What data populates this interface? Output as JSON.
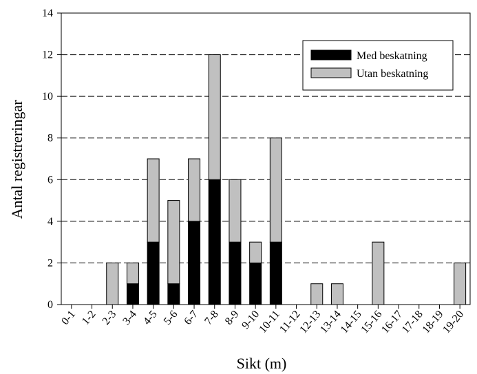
{
  "chart_data": {
    "type": "bar",
    "stacked": true,
    "xlabel": "Sikt (m)",
    "ylabel": "Antal registreringar",
    "ylim": [
      0,
      14
    ],
    "yticks": [
      0,
      2,
      4,
      6,
      8,
      10,
      12,
      14
    ],
    "grid": "horizontal-dashed",
    "legend_position": "top-right",
    "categories": [
      "0-1",
      "1-2",
      "2-3",
      "3-4",
      "4-5",
      "5-6",
      "6-7",
      "7-8",
      "8-9",
      "9-10",
      "10-11",
      "11-12",
      "12-13",
      "13-14",
      "14-15",
      "15-16",
      "16-17",
      "17-18",
      "18-19",
      "19-20"
    ],
    "series": [
      {
        "name": "Med beskatning",
        "color": "#000000",
        "values": [
          0,
          0,
          0,
          1,
          3,
          1,
          4,
          6,
          3,
          2,
          3,
          0,
          0,
          0,
          0,
          0,
          0,
          0,
          0,
          0
        ]
      },
      {
        "name": "Utan beskatning",
        "color": "#c0c0c0",
        "values": [
          0,
          0,
          2,
          1,
          4,
          4,
          3,
          6,
          3,
          1,
          5,
          0,
          1,
          1,
          0,
          3,
          0,
          0,
          0,
          2
        ]
      }
    ]
  }
}
